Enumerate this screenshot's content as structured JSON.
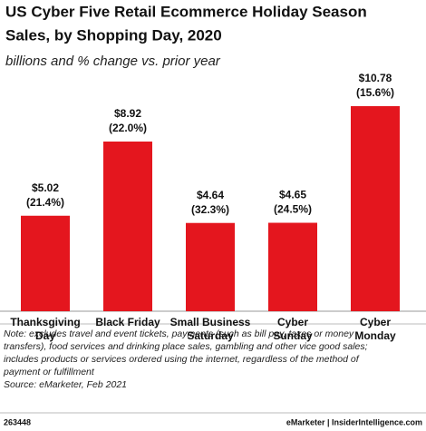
{
  "chart_data": {
    "type": "bar",
    "title": [
      "US Cyber Five Retail Ecommerce Holiday Season",
      "Sales, by Shopping Day, 2020"
    ],
    "subtitle": "billions and % change vs. prior year",
    "categories": [
      [
        "Thanksgiving",
        "Day"
      ],
      [
        "Black Friday"
      ],
      [
        "Small Business",
        "Saturday"
      ],
      [
        "Cyber",
        "Sunday"
      ],
      [
        "Cyber",
        "Monday"
      ]
    ],
    "values": [
      5.02,
      8.92,
      4.64,
      4.65,
      10.78
    ],
    "value_labels": [
      "$5.02",
      "$8.92",
      "$4.64",
      "$4.65",
      "$10.78"
    ],
    "change_labels": [
      "(21.4%)",
      "(22.0%)",
      "(32.3%)",
      "(24.5%)",
      "(15.6%)"
    ],
    "color": "#e4161e",
    "notes": [
      "Note: excludes travel and event tickets, payments (such as bill pay, taxes or money",
      "transfers), food services and drinking place sales, gambling and other vice good sales;",
      "includes products or services ordered using the internet, regardless of the method of",
      "payment or fulfillment",
      "Source: eMarketer, Feb 2021"
    ],
    "chart_id": "263448",
    "brand": "eMarketer | InsiderIntelligence.com"
  }
}
